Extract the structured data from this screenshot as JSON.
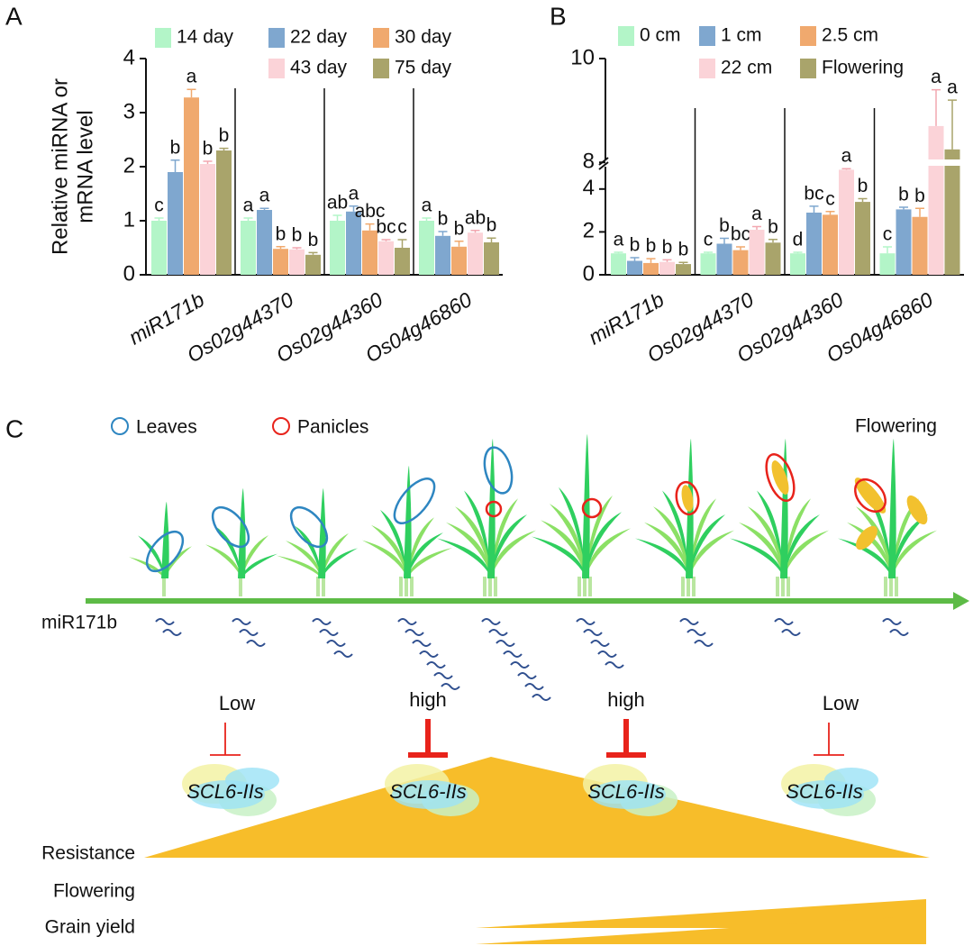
{
  "chart_data": [
    {
      "type": "bar",
      "panel": "A",
      "ylabel": [
        "Relative miRNA or",
        "mRNA level"
      ],
      "categories": [
        "miR171b",
        "Os02g44370",
        "Os02g44360",
        "Os04g46860"
      ],
      "ylim": [
        0,
        4
      ],
      "yticks": [
        0,
        1,
        2,
        3,
        4
      ],
      "series": [
        {
          "name": "14 day",
          "color": "#b3f5c8",
          "values": [
            1,
            1,
            1,
            1
          ],
          "errors": [
            0.05,
            0.05,
            0.1,
            0.05
          ],
          "letters": [
            "c",
            "a",
            "ab",
            "a"
          ]
        },
        {
          "name": "22 day",
          "color": "#7fa7cf",
          "values": [
            1.9,
            1.2,
            1.17,
            0.72
          ],
          "errors": [
            0.22,
            0.03,
            0.1,
            0.08
          ],
          "letters": [
            "b",
            "a",
            "a",
            "b"
          ]
        },
        {
          "name": "30 day",
          "color": "#f0a96e",
          "values": [
            3.28,
            0.48,
            0.82,
            0.52
          ],
          "errors": [
            0.15,
            0.04,
            0.12,
            0.1
          ],
          "letters": [
            "a",
            "b",
            "abc",
            "b"
          ]
        },
        {
          "name": "43 day",
          "color": "#fbd3d8",
          "values": [
            2.05,
            0.47,
            0.62,
            0.78
          ],
          "errors": [
            0.05,
            0.03,
            0.03,
            0.04
          ],
          "letters": [
            "b",
            "b",
            "bc",
            "ab"
          ]
        },
        {
          "name": "75 day",
          "color": "#a9a46b",
          "values": [
            2.3,
            0.37,
            0.5,
            0.6
          ],
          "errors": [
            0.04,
            0.04,
            0.15,
            0.08
          ],
          "letters": [
            "b",
            "b",
            "c",
            "b"
          ]
        }
      ]
    },
    {
      "type": "bar",
      "panel": "B",
      "categories": [
        "miR171b",
        "Os02g44370",
        "Os02g44360",
        "Os04g46860"
      ],
      "ylim": [
        0,
        10
      ],
      "ybreak": [
        5,
        7.9
      ],
      "yticks": [
        0,
        2,
        4,
        8,
        10
      ],
      "series": [
        {
          "name": "0 cm",
          "color": "#b3f5c8",
          "values": [
            1,
            1,
            1,
            1
          ],
          "errors": [
            0.05,
            0.05,
            0.05,
            0.3
          ],
          "letters": [
            "a",
            "c",
            "d",
            "c"
          ]
        },
        {
          "name": "1 cm",
          "color": "#7fa7cf",
          "values": [
            0.65,
            1.45,
            2.9,
            3.05
          ],
          "errors": [
            0.15,
            0.25,
            0.3,
            0.1
          ],
          "letters": [
            "b",
            "b",
            "bc",
            "b"
          ]
        },
        {
          "name": "2.5 cm",
          "color": "#f0a96e",
          "values": [
            0.55,
            1.15,
            2.8,
            2.7
          ],
          "errors": [
            0.2,
            0.15,
            0.15,
            0.4
          ],
          "letters": [
            "b",
            "bc",
            "c",
            "b"
          ]
        },
        {
          "name": "22 cm",
          "color": "#fbd3d8",
          "values": [
            0.6,
            2.1,
            4.9,
            8.7
          ],
          "errors": [
            0.1,
            0.15,
            0.05,
            0.7
          ],
          "letters": [
            "b",
            "a",
            "a",
            "a"
          ]
        },
        {
          "name": "Flowering",
          "color": "#a9a46b",
          "values": [
            0.5,
            1.5,
            3.4,
            8.25
          ],
          "errors": [
            0.08,
            0.15,
            0.15,
            0.95
          ],
          "letters": [
            "b",
            "b",
            "b",
            "a"
          ]
        }
      ]
    }
  ],
  "diagram": {
    "panel": "C",
    "legend": [
      {
        "label": "Leaves",
        "color": "#2e86c1"
      },
      {
        "label": "Panicles",
        "color": "#e8231b"
      }
    ],
    "stage_label": "Flowering",
    "axis_label": "miR171b",
    "regulation": [
      {
        "level": "Low",
        "target": "SCL6-IIs"
      },
      {
        "level": "high",
        "target": "SCL6-IIs"
      },
      {
        "level": "high",
        "target": "SCL6-IIs"
      },
      {
        "level": "Low",
        "target": "SCL6-IIs"
      }
    ],
    "traits": [
      "Resistance",
      "Flowering",
      "Grain yield"
    ]
  }
}
